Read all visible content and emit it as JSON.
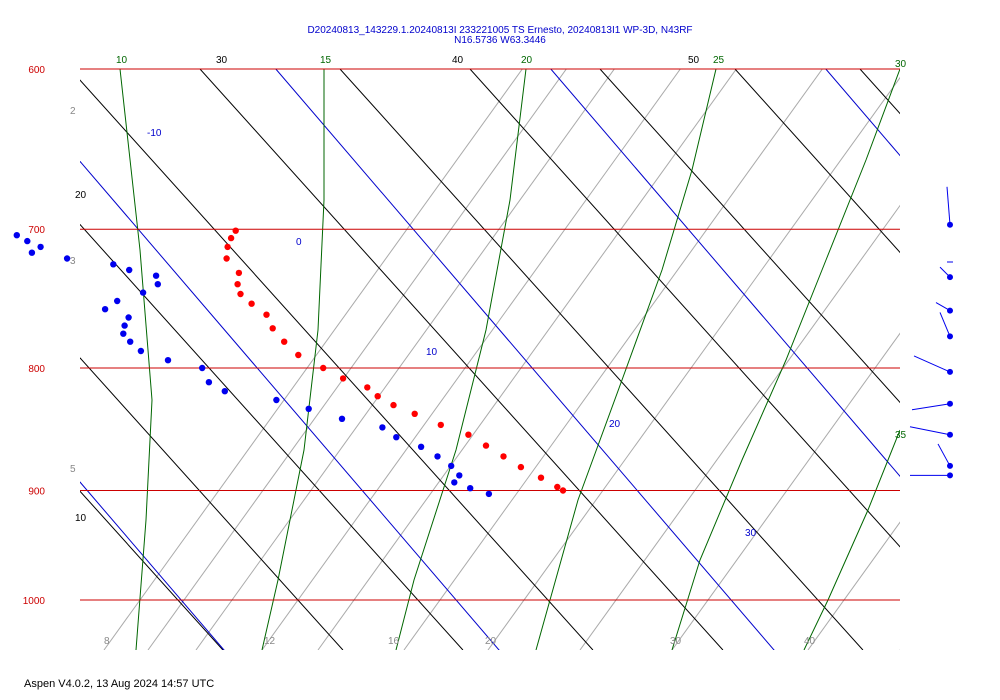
{
  "chart_data": {
    "type": "scatter",
    "subtype": "skew-t log-p diagram",
    "title": "D20240813_143229.1.20240813I 233221005 TS Ernesto, 20240813I1 WP-3D, N43RF",
    "subtitle": "N16.5736 W63.3446",
    "footer": "Aspen V4.0.2, 13 Aug 2024  14:57 UTC",
    "pressure_levels": [
      {
        "label": "600",
        "p": 600
      },
      {
        "label": "700",
        "p": 700
      },
      {
        "label": "800",
        "p": 800
      },
      {
        "label": "900",
        "p": 900
      },
      {
        "label": "1000",
        "p": 1000
      }
    ],
    "isotherm_labels": [
      "-10",
      "0",
      "10",
      "20",
      "30"
    ],
    "dry_adiabat_labels_top": [
      "30",
      "40",
      "50"
    ],
    "dry_adiabat_labels_left": [
      "20",
      "10"
    ],
    "moist_adiabat_labels": [
      "10",
      "15",
      "20",
      "25",
      "30",
      "35"
    ],
    "mixing_ratio_labels": [
      "2",
      "3",
      "5",
      "8",
      "12",
      "16",
      "20",
      "30",
      "40"
    ],
    "colors": {
      "isobar": "#cc0000",
      "isotherm": "#0000cc",
      "dry_adiabat": "#000000",
      "moist_adiabat": "#006600",
      "mixing_ratio": "#999999",
      "temperature": "#ff0000",
      "dewpoint": "#0000ee",
      "wind": "#0000ee",
      "title": "#0000cc"
    },
    "series": [
      {
        "name": "",
        "kind": "temperature",
        "points": [
          [
            701,
            13.5
          ],
          [
            706,
            13.1
          ],
          [
            712,
            12.7
          ],
          [
            720,
            12.3
          ],
          [
            730,
            12.3
          ],
          [
            738,
            11.9
          ],
          [
            745,
            11.7
          ],
          [
            752,
            11.8
          ],
          [
            760,
            12.0
          ],
          [
            770,
            11.8
          ],
          [
            780,
            11.8
          ],
          [
            790,
            11.9
          ],
          [
            800,
            12.4
          ],
          [
            808,
            12.8
          ],
          [
            815,
            13.4
          ],
          [
            822,
            13.5
          ],
          [
            829,
            13.8
          ],
          [
            836,
            14.3
          ],
          [
            845,
            14.9
          ],
          [
            853,
            15.6
          ],
          [
            862,
            15.9
          ],
          [
            871,
            16.2
          ],
          [
            880,
            16.5
          ],
          [
            889,
            16.9
          ],
          [
            897,
            17.2
          ],
          [
            900,
            17.3
          ]
        ]
      },
      {
        "name": "",
        "kind": "dewpoint",
        "points": [
          [
            704,
            5.4
          ],
          [
            708,
            5.6
          ],
          [
            712,
            5.9
          ],
          [
            716,
            5.4
          ],
          [
            720,
            6.5
          ],
          [
            724,
            8.0
          ],
          [
            728,
            8.4
          ],
          [
            732,
            9.2
          ],
          [
            738,
            9.0
          ],
          [
            744,
            8.2
          ],
          [
            750,
            7.0
          ],
          [
            756,
            6.3
          ],
          [
            762,
            6.9
          ],
          [
            768,
            6.5
          ],
          [
            774,
            6.2
          ],
          [
            780,
            6.2
          ],
          [
            787,
            6.3
          ],
          [
            794,
            7.0
          ],
          [
            800,
            8.0
          ],
          [
            811,
            7.8
          ],
          [
            818,
            8.1
          ],
          [
            825,
            9.7
          ],
          [
            832,
            10.6
          ],
          [
            840,
            11.5
          ],
          [
            847,
            12.7
          ],
          [
            855,
            12.9
          ],
          [
            863,
            13.5
          ],
          [
            871,
            13.8
          ],
          [
            879,
            14.0
          ],
          [
            887,
            14.0
          ],
          [
            893,
            13.6
          ],
          [
            898,
            14.0
          ],
          [
            903,
            14.5
          ]
        ]
      }
    ],
    "wind_barbs": [
      {
        "p": 697,
        "spd_kt": 5
      },
      {
        "p": 733,
        "spd_kt": 5
      },
      {
        "p": 757,
        "spd_kt": 5
      },
      {
        "p": 776,
        "spd_kt": 5
      },
      {
        "p": 803,
        "spd_kt": 5
      },
      {
        "p": 828,
        "spd_kt": 5
      },
      {
        "p": 853,
        "spd_kt": 5
      },
      {
        "p": 879,
        "spd_kt": 5
      },
      {
        "p": 887,
        "spd_kt": 5
      }
    ]
  }
}
